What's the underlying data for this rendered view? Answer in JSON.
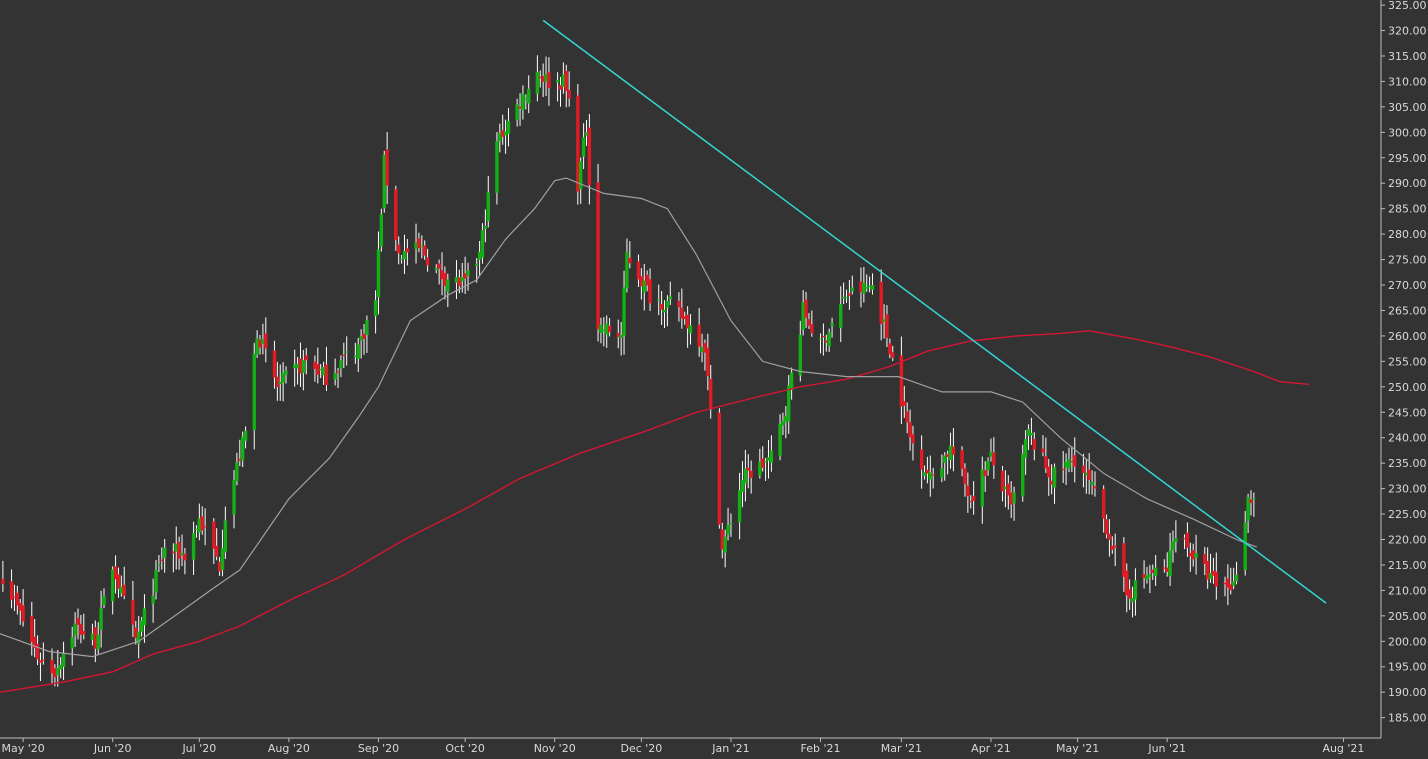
{
  "chart_data": {
    "type": "candlestick",
    "grid": false,
    "legend": "none",
    "colors": {
      "background": "#333333",
      "up": "#13b013",
      "down": "#e01b24",
      "wick": "#ffffff",
      "sma50": "#a0a0a0",
      "sma200": "#d51535",
      "trendline": "#33d6d6",
      "axis": "#bcbcbc",
      "text": "#d9d9d9"
    },
    "x_range": [
      "2020-04-23",
      "2021-08-14"
    ],
    "y_range": [
      181,
      326
    ],
    "x_ticks": [
      {
        "date": "2020-05-01",
        "label": "May '20"
      },
      {
        "date": "2020-06-01",
        "label": "Jun '20"
      },
      {
        "date": "2020-07-01",
        "label": "Jul '20"
      },
      {
        "date": "2020-08-01",
        "label": "Aug '20"
      },
      {
        "date": "2020-09-01",
        "label": "Sep '20"
      },
      {
        "date": "2020-10-01",
        "label": "Oct '20"
      },
      {
        "date": "2020-11-01",
        "label": "Nov '20"
      },
      {
        "date": "2020-12-01",
        "label": "Dec '20"
      },
      {
        "date": "2021-01-01",
        "label": "Jan '21"
      },
      {
        "date": "2021-02-01",
        "label": "Feb '21"
      },
      {
        "date": "2021-03-01",
        "label": "Mar '21"
      },
      {
        "date": "2021-04-01",
        "label": "Apr '21"
      },
      {
        "date": "2021-05-01",
        "label": "May '21"
      },
      {
        "date": "2021-06-01",
        "label": "Jun '21"
      },
      {
        "date": "2021-08-01",
        "label": "Aug '21"
      }
    ],
    "y_ticks": [
      "185.00",
      "190.00",
      "195.00",
      "200.00",
      "205.00",
      "210.00",
      "215.00",
      "220.00",
      "225.00",
      "230.00",
      "235.00",
      "240.00",
      "245.00",
      "250.00",
      "255.00",
      "260.00",
      "265.00",
      "270.00",
      "275.00",
      "280.00",
      "285.00",
      "290.00",
      "295.00",
      "300.00",
      "305.00",
      "310.00",
      "315.00",
      "320.00",
      "325.00"
    ],
    "waypoints": [
      [
        "2020-04-24",
        213
      ],
      [
        "2020-05-01",
        204
      ],
      [
        "2020-05-06",
        197
      ],
      [
        "2020-05-12",
        194
      ],
      [
        "2020-05-19",
        203
      ],
      [
        "2020-05-26",
        200
      ],
      [
        "2020-06-01",
        215
      ],
      [
        "2020-06-09",
        200
      ],
      [
        "2020-06-12",
        205
      ],
      [
        "2020-06-19",
        218
      ],
      [
        "2020-06-26",
        217
      ],
      [
        "2020-07-01",
        224
      ],
      [
        "2020-07-08",
        215
      ],
      [
        "2020-07-10",
        225
      ],
      [
        "2020-07-17",
        241
      ],
      [
        "2020-07-21",
        261
      ],
      [
        "2020-07-28",
        250
      ],
      [
        "2020-08-07",
        255
      ],
      [
        "2020-08-14",
        252
      ],
      [
        "2020-08-21",
        256
      ],
      [
        "2020-08-25",
        258
      ],
      [
        "2020-08-31",
        267
      ],
      [
        "2020-09-03",
        294
      ],
      [
        "2020-09-08",
        276
      ],
      [
        "2020-09-16",
        277
      ],
      [
        "2020-09-22",
        272
      ],
      [
        "2020-10-01",
        270
      ],
      [
        "2020-10-06",
        276
      ],
      [
        "2020-10-12",
        298
      ],
      [
        "2020-10-19",
        305
      ],
      [
        "2020-10-26",
        312
      ],
      [
        "2020-10-30",
        310
      ],
      [
        "2020-11-04",
        310
      ],
      [
        "2020-11-06",
        306
      ],
      [
        "2020-11-09",
        290
      ],
      [
        "2020-11-12",
        301
      ],
      [
        "2020-11-16",
        262
      ],
      [
        "2020-11-24",
        260
      ],
      [
        "2020-11-26",
        276
      ],
      [
        "2020-12-04",
        268
      ],
      [
        "2020-12-11",
        266
      ],
      [
        "2020-12-18",
        262
      ],
      [
        "2020-12-23",
        258
      ],
      [
        "2020-12-29",
        218
      ],
      [
        "2021-01-05",
        232
      ],
      [
        "2021-01-15",
        236
      ],
      [
        "2021-01-20",
        246
      ],
      [
        "2021-01-26",
        265
      ],
      [
        "2021-02-01",
        258
      ],
      [
        "2021-02-10",
        268
      ],
      [
        "2021-02-19",
        270
      ],
      [
        "2021-02-25",
        258
      ],
      [
        "2021-03-04",
        240
      ],
      [
        "2021-03-11",
        232
      ],
      [
        "2021-03-18",
        238
      ],
      [
        "2021-03-25",
        228
      ],
      [
        "2021-04-01",
        236
      ],
      [
        "2021-04-08",
        226
      ],
      [
        "2021-04-14",
        241
      ],
      [
        "2021-04-22",
        232
      ],
      [
        "2021-04-30",
        236
      ],
      [
        "2021-05-06",
        230
      ],
      [
        "2021-05-12",
        221
      ],
      [
        "2021-05-18",
        209
      ],
      [
        "2021-05-25",
        213
      ],
      [
        "2021-06-01",
        214
      ],
      [
        "2021-06-04",
        222
      ],
      [
        "2021-06-11",
        216
      ],
      [
        "2021-06-18",
        211
      ],
      [
        "2021-06-24",
        211
      ],
      [
        "2021-06-29",
        228
      ],
      [
        "2021-07-01",
        228
      ]
    ],
    "sma50": [
      [
        "2020-04-23",
        201.5
      ],
      [
        "2020-05-10",
        198
      ],
      [
        "2020-05-25",
        197
      ],
      [
        "2020-06-10",
        200
      ],
      [
        "2020-06-25",
        206
      ],
      [
        "2020-07-06",
        210.5
      ],
      [
        "2020-07-15",
        214
      ],
      [
        "2020-08-01",
        228
      ],
      [
        "2020-08-15",
        236
      ],
      [
        "2020-08-25",
        244
      ],
      [
        "2020-09-01",
        250
      ],
      [
        "2020-09-12",
        263
      ],
      [
        "2020-09-25",
        268
      ],
      [
        "2020-10-05",
        271
      ],
      [
        "2020-10-15",
        279
      ],
      [
        "2020-10-25",
        285
      ],
      [
        "2020-11-01",
        290.5
      ],
      [
        "2020-11-05",
        291
      ],
      [
        "2020-11-18",
        288
      ],
      [
        "2020-12-01",
        287
      ],
      [
        "2020-12-10",
        285
      ],
      [
        "2020-12-20",
        276
      ],
      [
        "2021-01-01",
        263
      ],
      [
        "2021-01-12",
        255
      ],
      [
        "2021-01-25",
        253
      ],
      [
        "2021-02-10",
        252
      ],
      [
        "2021-02-28",
        252
      ],
      [
        "2021-03-15",
        249
      ],
      [
        "2021-04-01",
        249
      ],
      [
        "2021-04-12",
        247
      ],
      [
        "2021-04-25",
        240
      ],
      [
        "2021-05-10",
        233
      ],
      [
        "2021-05-25",
        228
      ],
      [
        "2021-06-10",
        224
      ],
      [
        "2021-06-25",
        220
      ],
      [
        "2021-07-02",
        218.5
      ]
    ],
    "sma200": [
      [
        "2020-04-23",
        190
      ],
      [
        "2020-05-15",
        192
      ],
      [
        "2020-06-01",
        194
      ],
      [
        "2020-06-15",
        197.5
      ],
      [
        "2020-07-01",
        200
      ],
      [
        "2020-07-15",
        203
      ],
      [
        "2020-08-01",
        208
      ],
      [
        "2020-08-20",
        213
      ],
      [
        "2020-09-10",
        220
      ],
      [
        "2020-10-01",
        226
      ],
      [
        "2020-10-20",
        232
      ],
      [
        "2020-11-10",
        237
      ],
      [
        "2020-12-01",
        241
      ],
      [
        "2020-12-20",
        245
      ],
      [
        "2021-01-10",
        248
      ],
      [
        "2021-01-25",
        250
      ],
      [
        "2021-02-10",
        251.5
      ],
      [
        "2021-02-25",
        254
      ],
      [
        "2021-03-10",
        257
      ],
      [
        "2021-03-25",
        259
      ],
      [
        "2021-04-10",
        260
      ],
      [
        "2021-04-25",
        260.5
      ],
      [
        "2021-05-05",
        261
      ],
      [
        "2021-05-20",
        259.5
      ],
      [
        "2021-06-01",
        258
      ],
      [
        "2021-06-15",
        256
      ],
      [
        "2021-07-01",
        253
      ],
      [
        "2021-07-10",
        251
      ],
      [
        "2021-07-20",
        250.5
      ]
    ],
    "trendline": [
      [
        "2020-10-28",
        322
      ],
      [
        "2021-07-26",
        207.5
      ]
    ]
  }
}
